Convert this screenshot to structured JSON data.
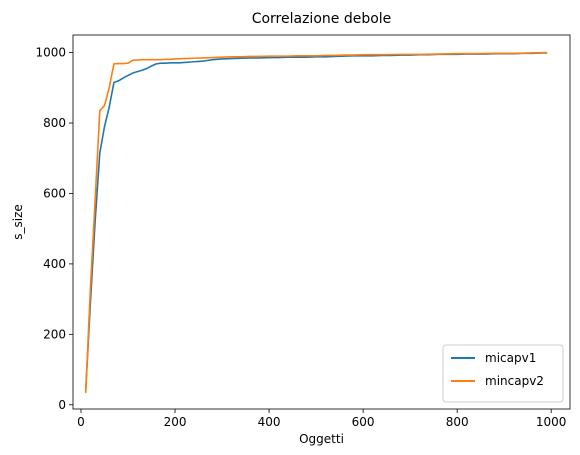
{
  "chart_data": {
    "type": "line",
    "title": "Correlazione debole",
    "xlabel": "Oggetti",
    "ylabel": "s_size",
    "xlim": [
      -17,
      1040
    ],
    "ylim": [
      -12,
      1050
    ],
    "xticks": [
      0,
      200,
      400,
      600,
      800,
      1000
    ],
    "xtick_labels": [
      "0",
      "200",
      "400",
      "600",
      "800",
      "1000"
    ],
    "yticks": [
      0,
      200,
      400,
      600,
      800,
      1000
    ],
    "ytick_labels": [
      "0",
      "200",
      "400",
      "600",
      "800",
      "1000"
    ],
    "grid": false,
    "legend_position": "lower-right",
    "series": [
      {
        "name": "micapv1",
        "color": "#1f77b4",
        "x": [
          10,
          20,
          30,
          40,
          50,
          60,
          70,
          80,
          90,
          100,
          110,
          120,
          130,
          140,
          150,
          160,
          170,
          180,
          190,
          200,
          210,
          220,
          230,
          240,
          250,
          260,
          270,
          280,
          290,
          300,
          320,
          340,
          360,
          380,
          400,
          420,
          440,
          460,
          480,
          500,
          520,
          540,
          560,
          580,
          600,
          620,
          640,
          660,
          680,
          700,
          720,
          740,
          760,
          780,
          800,
          820,
          840,
          860,
          880,
          900,
          920,
          940,
          960,
          980,
          990
        ],
        "values": [
          40,
          290,
          520,
          715,
          790,
          845,
          915,
          920,
          928,
          935,
          942,
          946,
          950,
          955,
          962,
          968,
          970,
          970,
          971,
          971,
          971,
          972,
          973,
          974,
          975,
          976,
          978,
          980,
          981,
          982,
          983,
          984,
          985,
          985,
          986,
          986,
          987,
          987,
          987,
          988,
          988,
          989,
          990,
          991,
          991,
          991,
          992,
          992,
          993,
          993,
          994,
          994,
          995,
          995,
          995,
          996,
          996,
          996,
          997,
          997,
          997,
          998,
          998,
          999,
          999
        ]
      },
      {
        "name": "mincapv2",
        "color": "#ff7f0e",
        "x": [
          10,
          20,
          30,
          40,
          50,
          60,
          70,
          80,
          90,
          100,
          110,
          120,
          130,
          140,
          150,
          160,
          170,
          180,
          190,
          200,
          220,
          240,
          260,
          280,
          300,
          320,
          340,
          360,
          380,
          400,
          420,
          440,
          460,
          480,
          500,
          520,
          540,
          560,
          580,
          600,
          640,
          680,
          720,
          760,
          800,
          840,
          880,
          920,
          960,
          990
        ],
        "values": [
          35,
          330,
          580,
          835,
          850,
          900,
          968,
          969,
          969,
          970,
          978,
          979,
          980,
          980,
          980,
          980,
          980,
          981,
          981,
          982,
          983,
          984,
          985,
          986,
          987,
          988,
          988,
          989,
          989,
          990,
          990,
          990,
          991,
          991,
          991,
          992,
          992,
          993,
          993,
          994,
          994,
          995,
          995,
          996,
          997,
          997,
          998,
          998,
          999,
          1000
        ]
      }
    ]
  }
}
